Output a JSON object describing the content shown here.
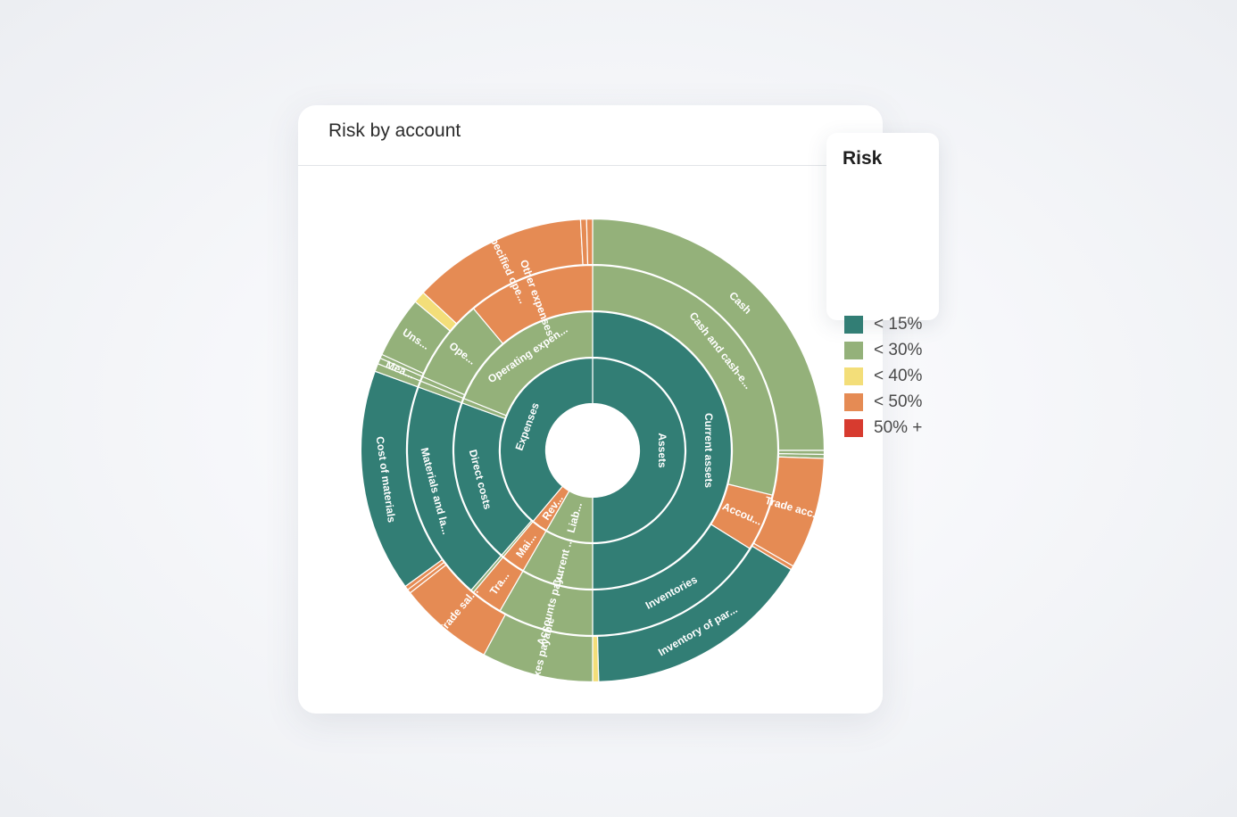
{
  "card": {
    "title": "Risk by account"
  },
  "legend": {
    "title": "Risk",
    "items": [
      {
        "label": "< 15%",
        "color": "#327e75"
      },
      {
        "label": "< 30%",
        "color": "#94b17a"
      },
      {
        "label": "< 40%",
        "color": "#f3de79"
      },
      {
        "label": "< 50%",
        "color": "#e58b54"
      },
      {
        "label": "50% +",
        "color": "#d73b2f"
      }
    ]
  },
  "chart_data": {
    "type": "sunburst",
    "title": "",
    "legend_position": "top-right",
    "risk_colors": {
      "<15%": "#327e75",
      "<30%": "#94b17a",
      "<40%": "#f3de79",
      "<50%": "#e58b54",
      "50%+": "#d73b2f"
    },
    "segments": [
      {
        "ring": 1,
        "start_deg": 0,
        "end_deg": 180,
        "risk": "<15%",
        "label": "Assets"
      },
      {
        "ring": 1,
        "start_deg": 180,
        "end_deg": 210,
        "risk": "<30%",
        "label": "Liab..."
      },
      {
        "ring": 1,
        "start_deg": 210,
        "end_deg": 220,
        "risk": "<50%",
        "label": "Rev..."
      },
      {
        "ring": 1,
        "start_deg": 220,
        "end_deg": 360,
        "risk": "<15%",
        "label": "Expenses"
      },
      {
        "ring": 2,
        "start_deg": 0,
        "end_deg": 180,
        "risk": "<15%",
        "label": "Current assets"
      },
      {
        "ring": 2,
        "start_deg": 180,
        "end_deg": 210,
        "risk": "<30%",
        "label": "Current ..."
      },
      {
        "ring": 2,
        "start_deg": 210,
        "end_deg": 220,
        "risk": "<50%",
        "label": "Mai..."
      },
      {
        "ring": 2,
        "start_deg": 220,
        "end_deg": 221,
        "risk": "<30%",
        "label": ""
      },
      {
        "ring": 2,
        "start_deg": 221,
        "end_deg": 290,
        "risk": "<15%",
        "label": "Direct costs"
      },
      {
        "ring": 2,
        "start_deg": 290,
        "end_deg": 292,
        "risk": "<30%",
        "label": ""
      },
      {
        "ring": 2,
        "start_deg": 292,
        "end_deg": 360,
        "risk": "<30%",
        "label": "Operating expen..."
      },
      {
        "ring": 3,
        "start_deg": 0,
        "end_deg": 104,
        "risk": "<30%",
        "label": "Cash and cash-e..."
      },
      {
        "ring": 3,
        "start_deg": 104,
        "end_deg": 122,
        "risk": "<50%",
        "label": "Accou..."
      },
      {
        "ring": 3,
        "start_deg": 122,
        "end_deg": 180,
        "risk": "<15%",
        "label": "Inventories"
      },
      {
        "ring": 3,
        "start_deg": 180,
        "end_deg": 210,
        "risk": "<30%",
        "label": "Accounts pay..."
      },
      {
        "ring": 3,
        "start_deg": 210,
        "end_deg": 220,
        "risk": "<50%",
        "label": "Tra..."
      },
      {
        "ring": 3,
        "start_deg": 220,
        "end_deg": 221,
        "risk": "<30%",
        "label": ""
      },
      {
        "ring": 3,
        "start_deg": 221,
        "end_deg": 290,
        "risk": "<15%",
        "label": "Materials and la..."
      },
      {
        "ring": 3,
        "start_deg": 290,
        "end_deg": 292,
        "risk": "<30%",
        "label": ""
      },
      {
        "ring": 3,
        "start_deg": 292,
        "end_deg": 293.5,
        "risk": "<30%",
        "label": ""
      },
      {
        "ring": 3,
        "start_deg": 293.5,
        "end_deg": 320,
        "risk": "<30%",
        "label": "Ope..."
      },
      {
        "ring": 3,
        "start_deg": 320,
        "end_deg": 360,
        "risk": "<50%",
        "label": "Other expenses"
      },
      {
        "ring": 4,
        "start_deg": 0,
        "end_deg": 90,
        "risk": "<30%",
        "label": "Cash"
      },
      {
        "ring": 4,
        "start_deg": 90,
        "end_deg": 91,
        "risk": "<30%",
        "label": ""
      },
      {
        "ring": 4,
        "start_deg": 91,
        "end_deg": 92,
        "risk": "<30%",
        "label": ""
      },
      {
        "ring": 4,
        "start_deg": 92,
        "end_deg": 120,
        "risk": "<50%",
        "label": "Trade acc..."
      },
      {
        "ring": 4,
        "start_deg": 120,
        "end_deg": 121,
        "risk": "<50%",
        "label": ""
      },
      {
        "ring": 4,
        "start_deg": 121,
        "end_deg": 178.5,
        "risk": "<15%",
        "label": "Inventory of par..."
      },
      {
        "ring": 4,
        "start_deg": 178.5,
        "end_deg": 180,
        "risk": "<40%",
        "label": ""
      },
      {
        "ring": 4,
        "start_deg": 180,
        "end_deg": 208,
        "risk": "<30%",
        "label": "Taxes payable"
      },
      {
        "ring": 4,
        "start_deg": 208,
        "end_deg": 232,
        "risk": "<50%",
        "label": "Trade sal..."
      },
      {
        "ring": 4,
        "start_deg": 232,
        "end_deg": 233,
        "risk": "<50%",
        "label": ""
      },
      {
        "ring": 4,
        "start_deg": 233,
        "end_deg": 234,
        "risk": "<50%",
        "label": ""
      },
      {
        "ring": 4,
        "start_deg": 234,
        "end_deg": 290,
        "risk": "<15%",
        "label": "Cost of materials"
      },
      {
        "ring": 4,
        "start_deg": 290,
        "end_deg": 292,
        "risk": "<30%",
        "label": ""
      },
      {
        "ring": 4,
        "start_deg": 292,
        "end_deg": 293.5,
        "risk": "<30%",
        "label": "Mea..."
      },
      {
        "ring": 4,
        "start_deg": 293.5,
        "end_deg": 294.5,
        "risk": "<30%",
        "label": ""
      },
      {
        "ring": 4,
        "start_deg": 294.5,
        "end_deg": 310,
        "risk": "<30%",
        "label": "Uns..."
      },
      {
        "ring": 4,
        "start_deg": 310,
        "end_deg": 313,
        "risk": "<40%",
        "label": ""
      },
      {
        "ring": 4,
        "start_deg": 313,
        "end_deg": 357,
        "risk": "<50%",
        "label": "Unspecified ope..."
      },
      {
        "ring": 4,
        "start_deg": 357,
        "end_deg": 358.5,
        "risk": "<50%",
        "label": ""
      },
      {
        "ring": 4,
        "start_deg": 358.5,
        "end_deg": 360,
        "risk": "<50%",
        "label": ""
      }
    ]
  }
}
